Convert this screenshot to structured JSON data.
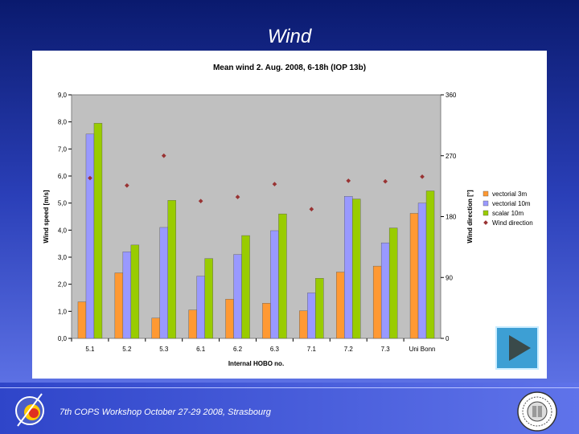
{
  "slide": {
    "title": "Wind",
    "footer": "7th COPS Workshop  October 27-29 2008, Strasbourg"
  },
  "icons": {
    "play": "play-triangle-icon",
    "logo": "cops-logo-icon",
    "seal": "university-seal-icon"
  },
  "chart_data": {
    "type": "bar",
    "title": "Mean wind 2. Aug. 2008, 6-18h (IOP 13b)",
    "xlabel": "Internal HOBO no.",
    "ylabel": "Wind speed [m/s]",
    "y2label": "Wind direction [°]",
    "categories": [
      "5.1",
      "5.2",
      "5.3",
      "6.1",
      "6.2",
      "6.3",
      "7.1",
      "7.2",
      "7.3",
      "Uni Bonn"
    ],
    "ylim": [
      0,
      9
    ],
    "yticks": [
      "0,0",
      "1,0",
      "2,0",
      "3,0",
      "4,0",
      "5,0",
      "6,0",
      "7,0",
      "8,0",
      "9,0"
    ],
    "y2lim": [
      0,
      360
    ],
    "y2ticks": [
      "0",
      "90",
      "180",
      "270",
      "360"
    ],
    "legend_position": "right",
    "grid": false,
    "plot_background": "#c0c0c0",
    "series": [
      {
        "name": "vectorial 3m",
        "axis": "left",
        "mark": "bar",
        "color": "#ff9933",
        "values": [
          1.35,
          2.42,
          0.75,
          1.05,
          1.45,
          1.3,
          1.02,
          2.45,
          2.67,
          4.62
        ]
      },
      {
        "name": "vectorial 10m",
        "axis": "left",
        "mark": "bar",
        "color": "#9999ff",
        "values": [
          7.55,
          3.2,
          4.1,
          2.3,
          3.1,
          3.98,
          1.68,
          5.25,
          3.53,
          5.0
        ]
      },
      {
        "name": "scalar 10m",
        "axis": "left",
        "mark": "bar",
        "color": "#99cc00",
        "values": [
          7.95,
          3.45,
          5.1,
          2.95,
          3.8,
          4.6,
          2.22,
          5.15,
          4.08,
          5.45
        ]
      },
      {
        "name": "Wind direction",
        "axis": "right",
        "mark": "point",
        "color": "#993333",
        "values": [
          237,
          226,
          270,
          203,
          209,
          228,
          191,
          233,
          232,
          239
        ]
      }
    ]
  }
}
